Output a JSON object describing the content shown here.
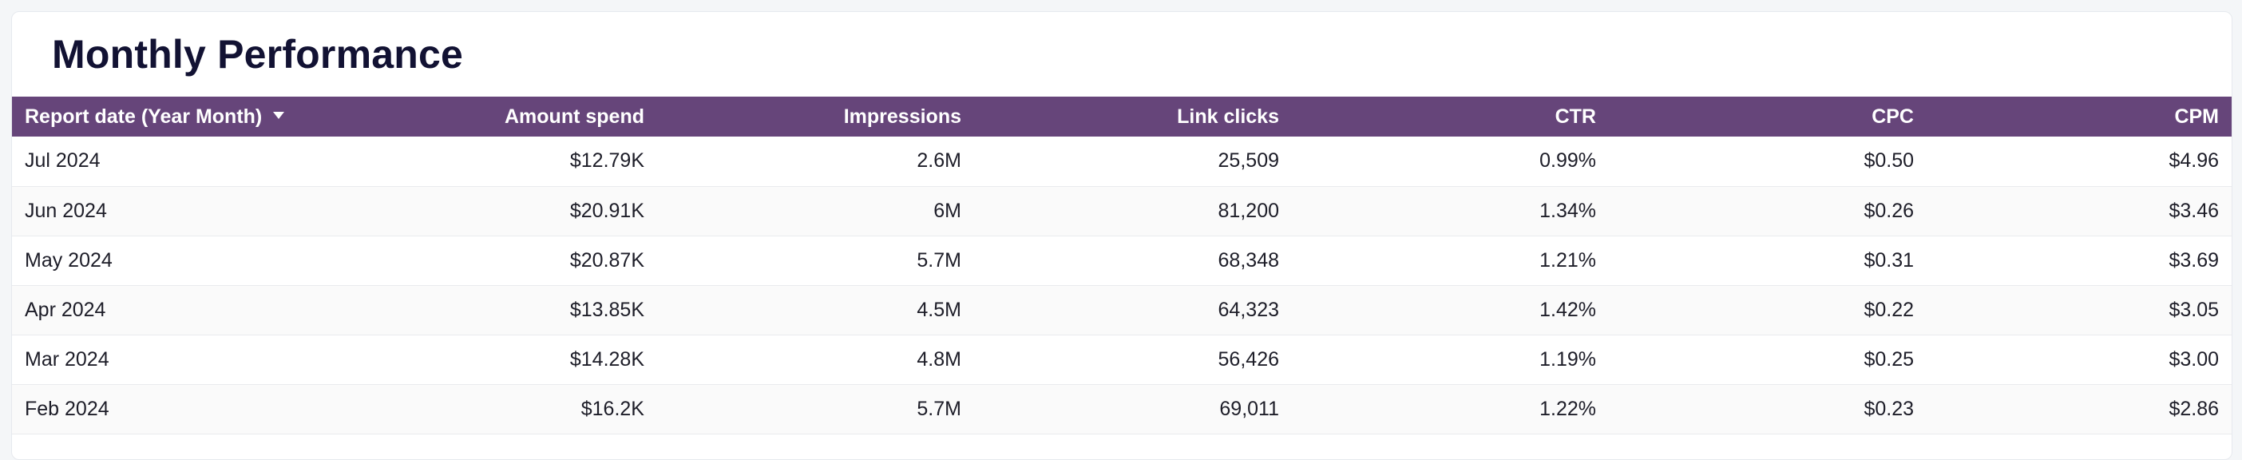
{
  "report": {
    "title": "Monthly Performance"
  },
  "table": {
    "columns": {
      "date": "Report date (Year Month)",
      "amount_spend": "Amount spend",
      "impressions": "Impressions",
      "link_clicks": "Link clicks",
      "ctr": "CTR",
      "cpc": "CPC",
      "cpm": "CPM"
    },
    "sort": {
      "column": "date",
      "direction": "descending",
      "icon": "caret-down-icon"
    },
    "rows": [
      {
        "date": "Jul 2024",
        "amount_spend": "$12.79K",
        "impressions": "2.6M",
        "link_clicks": "25,509",
        "ctr": "0.99%",
        "cpc": "$0.50",
        "cpm": "$4.96"
      },
      {
        "date": "Jun 2024",
        "amount_spend": "$20.91K",
        "impressions": "6M",
        "link_clicks": "81,200",
        "ctr": "1.34%",
        "cpc": "$0.26",
        "cpm": "$3.46"
      },
      {
        "date": "May 2024",
        "amount_spend": "$20.87K",
        "impressions": "5.7M",
        "link_clicks": "68,348",
        "ctr": "1.21%",
        "cpc": "$0.31",
        "cpm": "$3.69"
      },
      {
        "date": "Apr 2024",
        "amount_spend": "$13.85K",
        "impressions": "4.5M",
        "link_clicks": "64,323",
        "ctr": "1.42%",
        "cpc": "$0.22",
        "cpm": "$3.05"
      },
      {
        "date": "Mar 2024",
        "amount_spend": "$14.28K",
        "impressions": "4.8M",
        "link_clicks": "56,426",
        "ctr": "1.19%",
        "cpc": "$0.25",
        "cpm": "$3.00"
      },
      {
        "date": "Feb 2024",
        "amount_spend": "$16.2K",
        "impressions": "5.7M",
        "link_clicks": "69,011",
        "ctr": "1.22%",
        "cpc": "$0.23",
        "cpm": "$2.86"
      }
    ]
  },
  "colors": {
    "header_bg": "#66457a",
    "header_text": "#ffffff",
    "title_text": "#121233",
    "row_alt_bg": "#fafafa"
  }
}
